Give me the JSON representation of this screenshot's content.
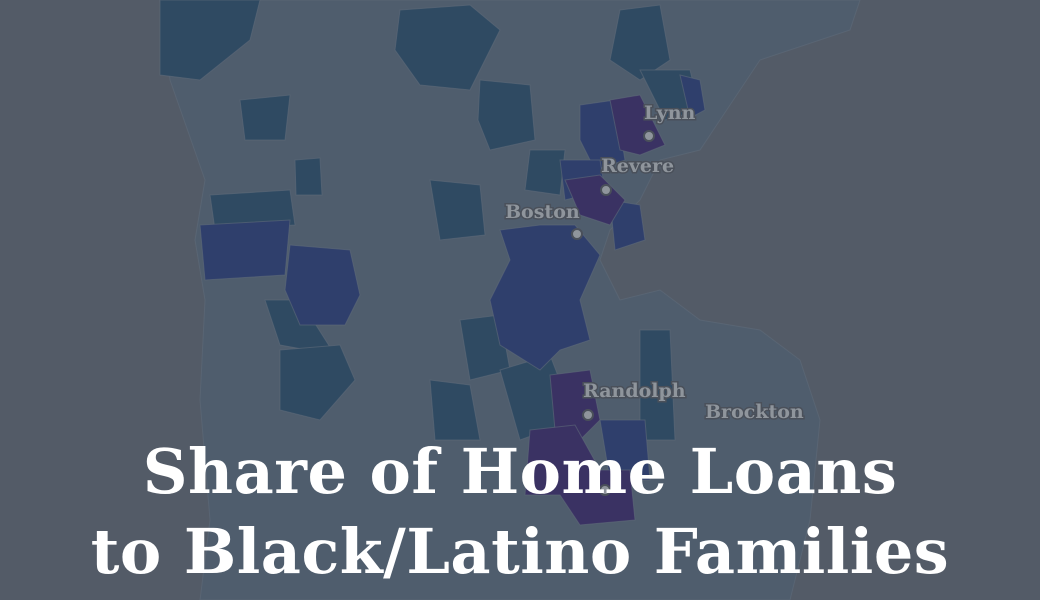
{
  "title": {
    "line1": "Share of Home Loans",
    "line2": "to Black/Latino Families"
  },
  "map": {
    "background_color": "#535b67",
    "fill_colors": {
      "lowest": "#4f5d6d",
      "low": "#3f5469",
      "medium": "#2f4a62",
      "high": "#2f3f6c",
      "highest": "#3a3263"
    },
    "cities": [
      {
        "name": "Lynn"
      },
      {
        "name": "Revere"
      },
      {
        "name": "Boston"
      },
      {
        "name": "Randolph"
      },
      {
        "name": "Brockton"
      }
    ]
  }
}
